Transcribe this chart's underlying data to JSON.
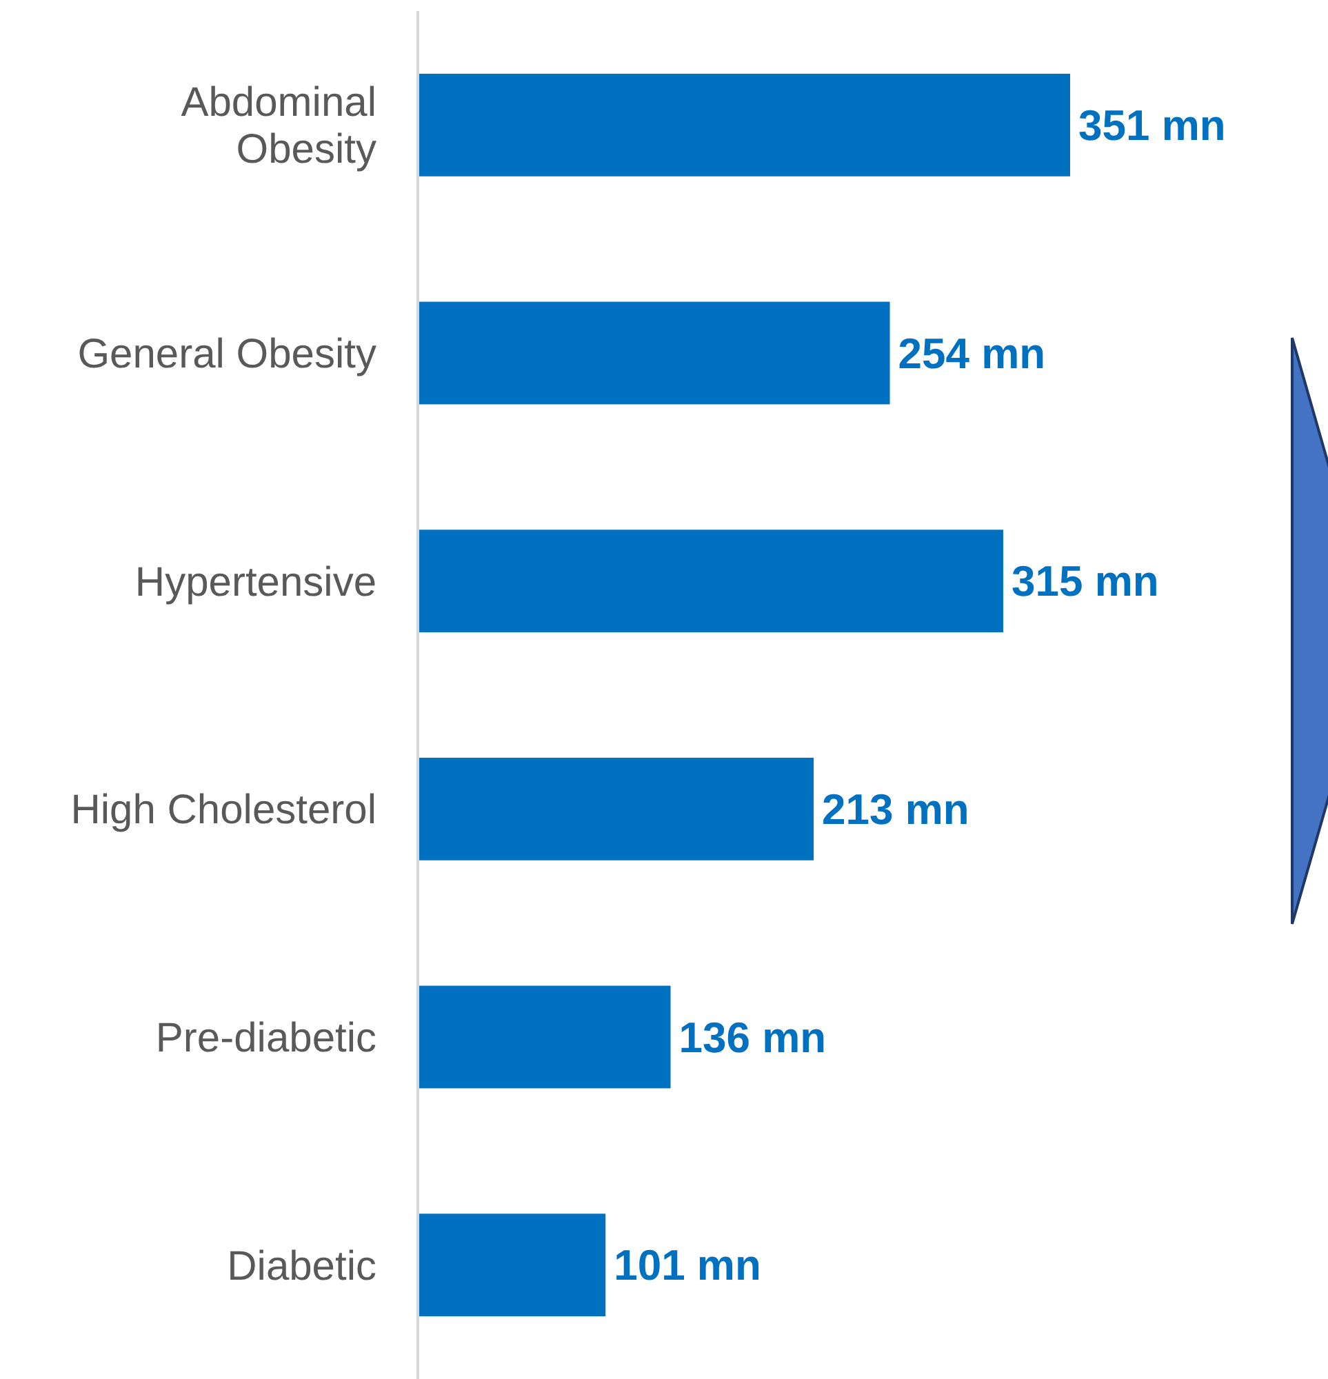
{
  "chart_data": {
    "type": "bar",
    "orientation": "horizontal",
    "relative": false,
    "categories": [
      "Abdominal Obesity",
      "General Obesity",
      "Hypertensive",
      "High Cholesterol",
      "Pre-diabetic",
      "Diabetic"
    ],
    "values": [
      351,
      254,
      315,
      213,
      136,
      101
    ],
    "value_labels": [
      "351 mn",
      "254 mn",
      "315 mn",
      "213 mn",
      "136 mn",
      "101 mn"
    ],
    "color": "#0070c0"
  }
}
